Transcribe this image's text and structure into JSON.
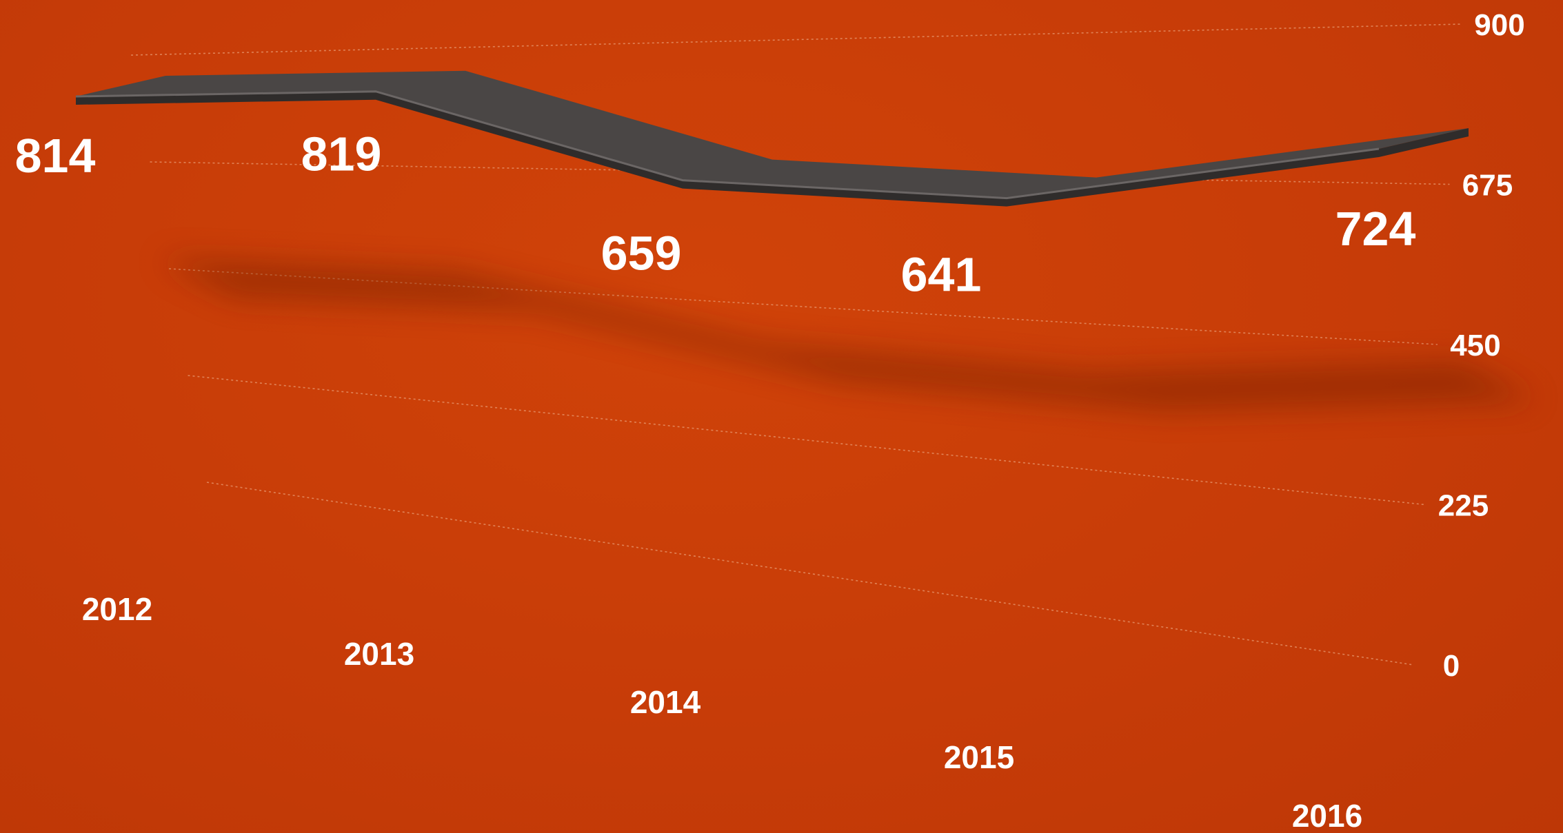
{
  "chart_data": {
    "type": "line",
    "style": "3d-ribbon",
    "categories": [
      "2012",
      "2013",
      "2014",
      "2015",
      "2016"
    ],
    "values": [
      814,
      819,
      659,
      641,
      724
    ],
    "data_labels": [
      "814",
      "819",
      "659",
      "641",
      "724"
    ],
    "y_ticks": [
      "0",
      "225",
      "450",
      "675",
      "900"
    ],
    "y_tick_values": [
      0,
      225,
      450,
      675,
      900
    ],
    "ylim": [
      0,
      900
    ],
    "y_axis_side": "right",
    "grid": true,
    "legend": "none",
    "title": "",
    "xlabel": "",
    "ylabel": ""
  },
  "colors": {
    "background": "#c93d08",
    "ribbon": "#4a4645",
    "ribbon_edge": "#2f2c2b",
    "text": "#ffffff",
    "grid": "#e89a72"
  }
}
